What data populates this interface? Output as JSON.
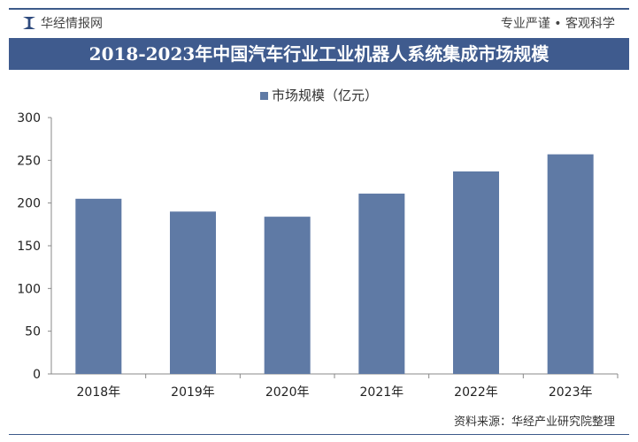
{
  "header": {
    "brand": "华经情报网",
    "slogan": "专业严谨 • 客观科学",
    "title": "2018-2023年中国汽车行业工业机器人系统集成市场规模"
  },
  "footer": {
    "source": "资料来源：华经产业研究院整理"
  },
  "chart_data": {
    "type": "bar",
    "title": "2018-2023年中国汽车行业工业机器人系统集成市场规模",
    "categories": [
      "2018年",
      "2019年",
      "2020年",
      "2021年",
      "2022年",
      "2023年"
    ],
    "series": [
      {
        "name": "市场规模（亿元）",
        "values": [
          205,
          190,
          184,
          211,
          237,
          257
        ],
        "color": "#5f7aa5"
      }
    ],
    "ylim": [
      0,
      300
    ],
    "yticks": [
      0,
      50,
      100,
      150,
      200,
      250,
      300
    ],
    "grid": false,
    "legend": "top"
  }
}
